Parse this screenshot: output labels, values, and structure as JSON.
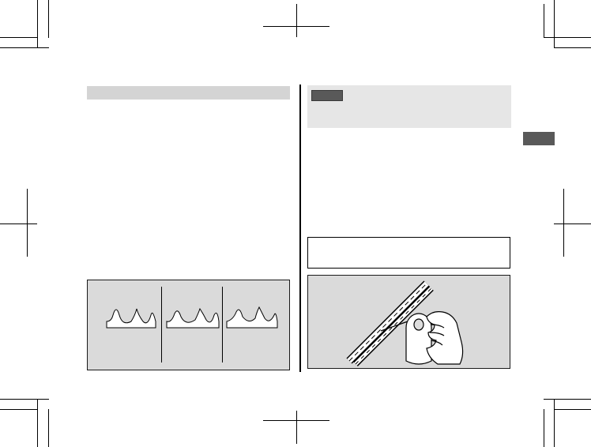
{
  "page": {
    "background": "#ffffff"
  },
  "colors": {
    "header_bar": "#d4d4d4",
    "note_box": "#e6e6e6",
    "dark_label": "#595959",
    "figure_bg": "#dadada"
  },
  "figures": {
    "sprocket_panels": [
      "sprocket-normal",
      "sprocket-worn",
      "sprocket-damaged"
    ],
    "chain_lubrication": "chain-spray-illustration"
  }
}
